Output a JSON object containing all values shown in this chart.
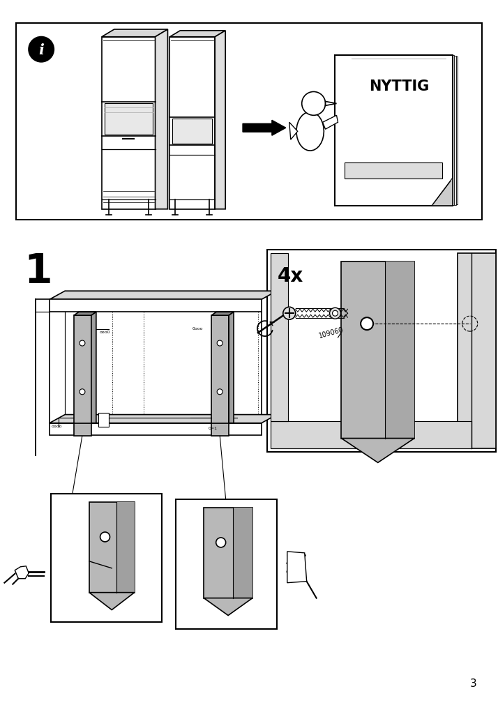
{
  "page_number": "3",
  "bg_color": "#ffffff",
  "step1_label": "1",
  "count_label": "4x",
  "part_number": "109060",
  "gray_color": "#b8b8b8",
  "dark_gray": "#888888",
  "light_gray": "#d8d8d8",
  "black": "#000000",
  "white": "#ffffff"
}
